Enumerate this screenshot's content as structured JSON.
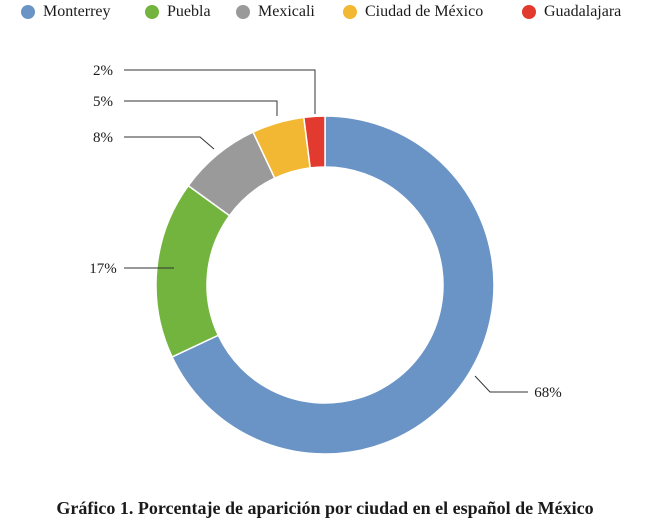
{
  "chart_data": {
    "type": "pie",
    "variant": "donut",
    "legend_position": "top",
    "categories": [
      "Monterrey",
      "Puebla",
      "Mexicali",
      "Ciudad de México",
      "Guadalajara"
    ],
    "values": [
      68,
      17,
      8,
      5,
      2
    ],
    "value_labels": [
      "68%",
      "17%",
      "8%",
      "5%",
      "2%"
    ],
    "colors": [
      "#6a93c6",
      "#72b43d",
      "#9a9a9a",
      "#f2b833",
      "#e23a2e"
    ]
  },
  "caption": "Gráfico 1. Porcentaje de aparición por ciudad en el español de México"
}
